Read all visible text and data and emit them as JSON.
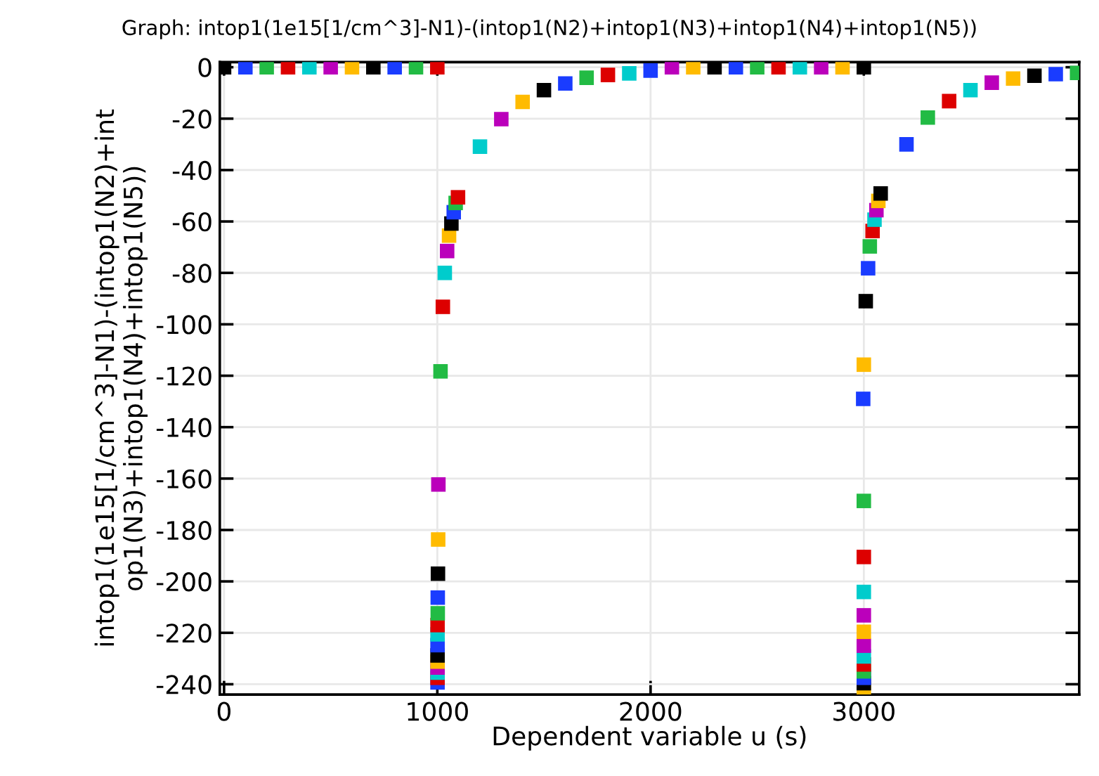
{
  "chart_data": {
    "type": "scatter",
    "title": "Graph: intop1(1e15[1/cm^3]-N1)-(intop1(N2)+intop1(N3)+intop1(N4)+intop1(N5))",
    "xlabel": "Dependent variable u (s)",
    "ylabel": "intop1(1e15[1/cm^3]-N1)-(intop1(N2)+int\nop1(N3)+intop1(N4)+intop1(N5))",
    "xlim": [
      -20,
      4010
    ],
    "ylim": [
      -244,
      2
    ],
    "xticks": [
      0,
      1000,
      2000,
      3000
    ],
    "yticks": [
      0,
      -20,
      -40,
      -60,
      -80,
      -100,
      -120,
      -140,
      -160,
      -180,
      -200,
      -220,
      -240
    ],
    "grid": true,
    "marker": "square",
    "legend": false,
    "series": [
      {
        "x": [
          0,
          100,
          200,
          300,
          400,
          500,
          600,
          700,
          800,
          900,
          1000,
          1001,
          1001,
          1001,
          1001,
          1001,
          1001,
          1001,
          1001,
          1001,
          1002,
          1002,
          1003,
          1004,
          1005,
          1015,
          1026,
          1035,
          1046,
          1055,
          1066,
          1077,
          1086,
          1097,
          1200,
          1300,
          1400,
          1500,
          1600,
          1700,
          1800,
          1900,
          2000,
          2100,
          2200,
          2300,
          2400,
          2500,
          2600,
          2700,
          2800,
          2900,
          3000,
          3000,
          3000,
          3000,
          3000,
          3000,
          3000,
          3000,
          3000,
          3000,
          3000,
          3000,
          3000,
          2997,
          3000,
          3009,
          3020,
          3028,
          3041,
          3050,
          3059,
          3068,
          3079,
          3200,
          3300,
          3400,
          3500,
          3600,
          3700,
          3800,
          3900,
          4000
        ],
        "values": [
          0,
          0,
          0,
          0,
          0,
          0,
          0,
          0,
          0,
          0,
          0,
          -239.3,
          -237.5,
          -235.5,
          -233.5,
          -231.2,
          -228.8,
          -224.8,
          -220.6,
          -217,
          -212.4,
          -206.3,
          -197,
          -183.7,
          -162.3,
          -118.3,
          -93.2,
          -80,
          -71.5,
          -65.5,
          -60.8,
          -56.4,
          -52.8,
          -50.6,
          -30.9,
          -20.2,
          -13.5,
          -8.9,
          -6.3,
          -4.1,
          -3,
          -2.4,
          -1.3,
          0,
          0,
          0,
          0,
          0,
          0,
          0,
          0,
          0,
          0,
          -242,
          -239.6,
          -237.5,
          -235,
          -232.3,
          -229.2,
          -225,
          -219.6,
          -213.2,
          -204.1,
          -190.5,
          -168.7,
          -129,
          -115.7,
          -91,
          -78.2,
          -69.7,
          -63.7,
          -59.3,
          -55.6,
          -52,
          -49.1,
          -30,
          -19.6,
          -13.2,
          -8.9,
          -6,
          -4.4,
          -3.3,
          -2.7,
          -2.2
        ],
        "colors": [
          "#000000",
          "#1a3cff",
          "#22bb44",
          "#dd0000",
          "#00cccc",
          "#bb00bb",
          "#ffbb00",
          "#000000",
          "#1a3cff",
          "#22bb44",
          "#dd0000",
          "#1a3cff",
          "#dd0000",
          "#00cccc",
          "#bb00bb",
          "#ffbb00",
          "#000000",
          "#1a3cff",
          "#00cccc",
          "#dd0000",
          "#22bb44",
          "#1a3cff",
          "#000000",
          "#ffbb00",
          "#bb00bb",
          "#22bb44",
          "#dd0000",
          "#00cccc",
          "#bb00bb",
          "#ffbb00",
          "#000000",
          "#1a3cff",
          "#22bb44",
          "#dd0000",
          "#00cccc",
          "#bb00bb",
          "#ffbb00",
          "#000000",
          "#1a3cff",
          "#22bb44",
          "#dd0000",
          "#00cccc",
          "#1a3cff",
          "#bb00bb",
          "#ffbb00",
          "#000000",
          "#1a3cff",
          "#22bb44",
          "#dd0000",
          "#00cccc",
          "#bb00bb",
          "#ffbb00",
          "#000000",
          "#ffbb00",
          "#000000",
          "#1a3cff",
          "#22bb44",
          "#dd0000",
          "#00cccc",
          "#bb00bb",
          "#ffbb00",
          "#bb00bb",
          "#00cccc",
          "#dd0000",
          "#22bb44",
          "#1a3cff",
          "#ffbb00",
          "#000000",
          "#1a3cff",
          "#22bb44",
          "#dd0000",
          "#00cccc",
          "#bb00bb",
          "#ffbb00",
          "#000000",
          "#1a3cff",
          "#22bb44",
          "#dd0000",
          "#00cccc",
          "#bb00bb",
          "#ffbb00",
          "#000000",
          "#1a3cff",
          "#22bb44"
        ]
      }
    ]
  }
}
